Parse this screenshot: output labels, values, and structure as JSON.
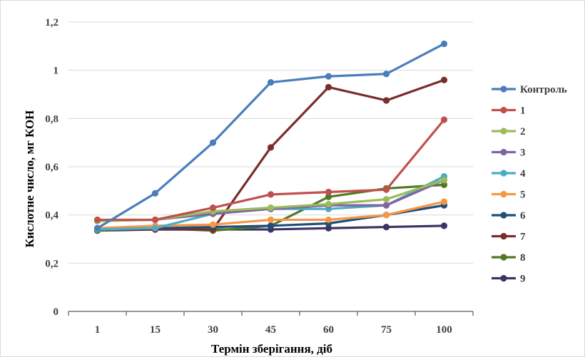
{
  "chart_data": {
    "type": "line",
    "categories": [
      "1",
      "15",
      "30",
      "45",
      "60",
      "75",
      "100"
    ],
    "xlabel": "Термін зберігання, діб",
    "ylabel": "Кислотне число, мг КОН",
    "ylim": [
      0,
      1.2
    ],
    "yticks": [
      0,
      0.2,
      0.4,
      0.6,
      0.8,
      1,
      1.2
    ],
    "ytick_labels": [
      "0",
      "0,2",
      "0,4",
      "0,6",
      "0,8",
      "1",
      "1,2"
    ],
    "grid": "horizontal",
    "legend_position": "right",
    "series": [
      {
        "name": "Контроль",
        "color": "#4a7ebb",
        "values": [
          0.345,
          0.49,
          0.7,
          0.95,
          0.975,
          0.985,
          1.11
        ]
      },
      {
        "name": "1",
        "color": "#c0504d",
        "values": [
          0.38,
          0.38,
          0.43,
          0.485,
          0.495,
          0.505,
          0.795
        ]
      },
      {
        "name": "2",
        "color": "#9bbb59",
        "values": [
          0.375,
          0.38,
          0.415,
          0.43,
          0.445,
          0.465,
          0.545
        ]
      },
      {
        "name": "3",
        "color": "#8064a2",
        "values": [
          0.375,
          0.38,
          0.405,
          0.425,
          0.44,
          0.44,
          0.545
        ]
      },
      {
        "name": "4",
        "color": "#4bacc6",
        "values": [
          0.34,
          0.345,
          0.405,
          0.425,
          0.425,
          0.44,
          0.56
        ]
      },
      {
        "name": "5",
        "color": "#f79646",
        "values": [
          0.345,
          0.355,
          0.36,
          0.38,
          0.38,
          0.4,
          0.455
        ]
      },
      {
        "name": "6",
        "color": "#1f4e79",
        "values": [
          0.34,
          0.345,
          0.35,
          0.355,
          0.365,
          0.4,
          0.44
        ]
      },
      {
        "name": "7",
        "color": "#7b2c2c",
        "values": [
          0.34,
          0.34,
          0.34,
          0.68,
          0.93,
          0.875,
          0.96
        ]
      },
      {
        "name": "8",
        "color": "#4f7a28",
        "values": [
          0.335,
          0.345,
          0.335,
          0.355,
          0.475,
          0.51,
          0.525
        ]
      },
      {
        "name": "9",
        "color": "#3e3366",
        "values": [
          0.335,
          0.34,
          0.34,
          0.34,
          0.345,
          0.35,
          0.355
        ]
      }
    ]
  }
}
